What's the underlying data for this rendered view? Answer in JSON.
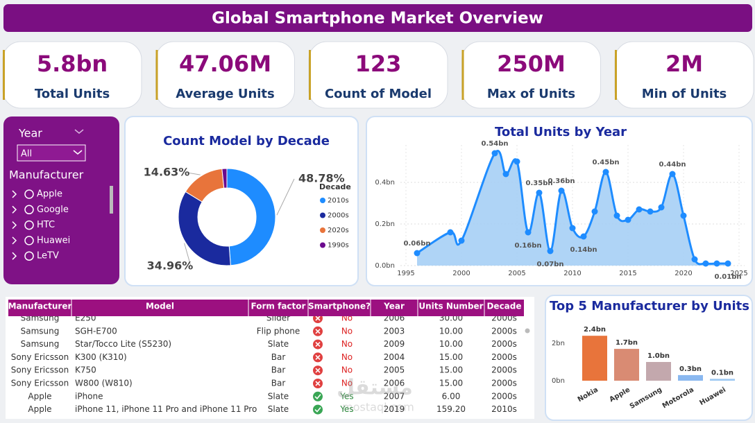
{
  "header": {
    "title": "Global Smartphone Market Overview"
  },
  "kpis": [
    {
      "value": "5.8bn",
      "label": "Total Units"
    },
    {
      "value": "47.06M",
      "label": "Average Units"
    },
    {
      "value": "123",
      "label": "Count of Model"
    },
    {
      "value": "250M",
      "label": "Max of Units"
    },
    {
      "value": "2M",
      "label": "Min of Units"
    }
  ],
  "filters": {
    "year_title": "Year",
    "year_value": "All",
    "manufacturer_title": "Manufacturer",
    "manufacturers": [
      "Apple",
      "Google",
      "HTC",
      "Huawei",
      "LeTV"
    ]
  },
  "table": {
    "columns": [
      "Manufacturer",
      "Model",
      "Form factor",
      "Smartphone?",
      "Year",
      "Units Number",
      "Decade"
    ],
    "rows": [
      [
        "Samsung",
        "E250",
        "Slider",
        "No",
        "2006",
        "30.00",
        "2000s"
      ],
      [
        "Samsung",
        "SGH-E700",
        "Flip phone",
        "No",
        "2003",
        "10.00",
        "2000s"
      ],
      [
        "Samsung",
        "Star/Tocco Lite (S5230)",
        "Slate",
        "No",
        "2009",
        "10.00",
        "2000s"
      ],
      [
        "Sony Ericsson",
        "K300 (K310)",
        "Bar",
        "No",
        "2004",
        "15.00",
        "2000s"
      ],
      [
        "Sony Ericsson",
        "K750",
        "Bar",
        "No",
        "2005",
        "15.00",
        "2000s"
      ],
      [
        "Sony Ericsson",
        "W800 (W810)",
        "Bar",
        "No",
        "2006",
        "15.00",
        "2000s"
      ],
      [
        "Apple",
        "iPhone",
        "Slate",
        "Yes",
        "2007",
        "6.00",
        "2000s"
      ],
      [
        "Apple",
        "iPhone 11, iPhone 11 Pro and iPhone 11 Pro",
        "Slate",
        "Yes",
        "2019",
        "159.20",
        "2010s"
      ]
    ]
  },
  "watermark": {
    "arabic": "مستقل",
    "latin": "mostaql.com"
  },
  "chart_data": [
    {
      "type": "pie",
      "title": "Count Model by Decade",
      "legend_title": "Decade",
      "categories": [
        "2010s",
        "2000s",
        "2020s",
        "1990s"
      ],
      "values": [
        48.78,
        34.96,
        14.63,
        1.63
      ],
      "value_labels": [
        "48.78%",
        "34.96%",
        "14.63%",
        null
      ],
      "colors": [
        "#1e8cff",
        "#1a2a9e",
        "#e8743b",
        "#6b0a8e"
      ]
    },
    {
      "type": "area",
      "title": "Total Units by Year",
      "x": [
        1996,
        1999,
        2000,
        2003,
        2004,
        2005,
        2006,
        2007,
        2008,
        2009,
        2010,
        2011,
        2012,
        2013,
        2014,
        2015,
        2016,
        2017,
        2018,
        2019,
        2020,
        2021,
        2022,
        2023,
        2024
      ],
      "values": [
        0.06,
        0.16,
        0.12,
        0.54,
        0.44,
        0.5,
        0.16,
        0.35,
        0.07,
        0.36,
        0.18,
        0.14,
        0.26,
        0.45,
        0.24,
        0.22,
        0.27,
        0.26,
        0.28,
        0.44,
        0.24,
        0.03,
        0.01,
        0.01,
        0.01
      ],
      "value_labels": [
        "0.06bn",
        null,
        null,
        "0.54bn",
        null,
        null,
        "0.16bn",
        "0.35bn",
        "0.07bn",
        "0.36bn",
        null,
        "0.14bn",
        null,
        "0.45bn",
        null,
        null,
        null,
        null,
        null,
        "0.44bn",
        null,
        null,
        null,
        null,
        "0.01bn"
      ],
      "color": "#1e8cff",
      "xlim": [
        1994.5,
        2025.5
      ],
      "xticks": [
        1995,
        2000,
        2005,
        2010,
        2015,
        2020,
        2025
      ],
      "ylim": [
        0,
        0.58
      ],
      "yticks": [
        {
          "value": 0,
          "label": "0.0bn"
        },
        {
          "value": 0.2,
          "label": "0.2bn"
        },
        {
          "value": 0.4,
          "label": "0.4bn"
        }
      ],
      "grid": true
    },
    {
      "type": "bar",
      "title": "Top 5 Manufacturer by Units",
      "categories": [
        "Nokia",
        "Apple",
        "Samsung",
        "Motorola",
        "Huawei"
      ],
      "values": [
        2.4,
        1.7,
        1.0,
        0.3,
        0.1
      ],
      "value_labels": [
        "2.4bn",
        "1.7bn",
        "1.0bn",
        "0.3bn",
        "0.1bn"
      ],
      "colors": [
        "#e8743b",
        "#d98b73",
        "#c3a8ad",
        "#8ab8f0",
        "#9ec9f2"
      ],
      "ylim": [
        0,
        2.9
      ],
      "yticks": [
        {
          "value": 0,
          "label": "0bn"
        },
        {
          "value": 2,
          "label": "2bn"
        }
      ],
      "grid": false
    }
  ]
}
